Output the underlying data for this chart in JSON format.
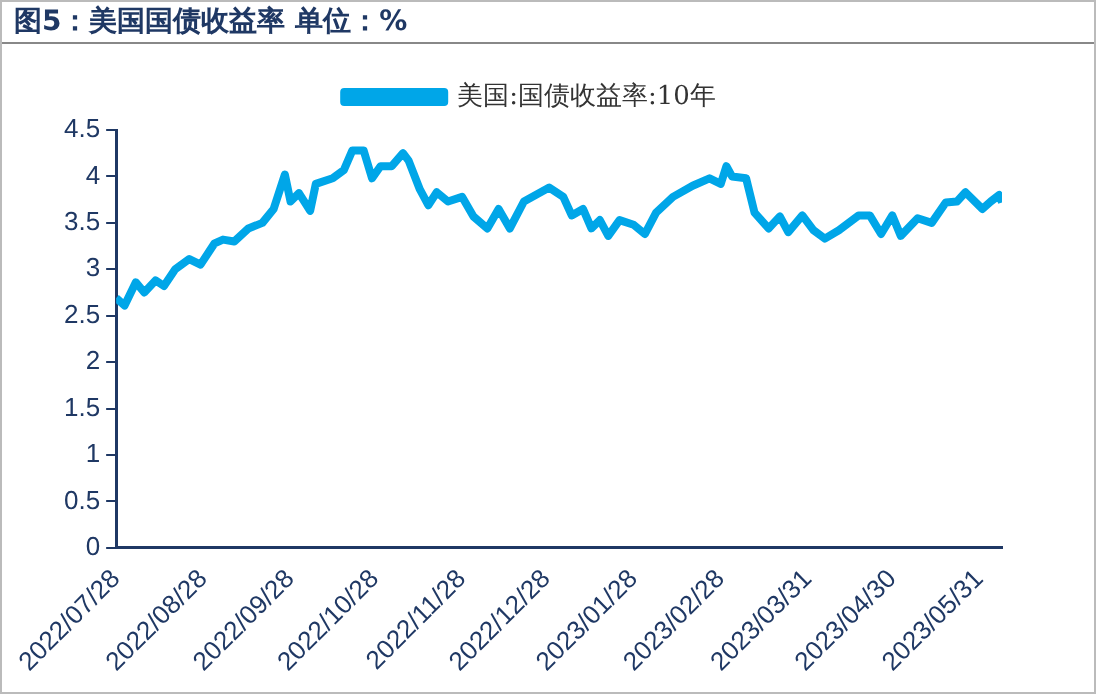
{
  "chart_data": {
    "type": "line",
    "title": "图5：美国国债收益率  单位：%",
    "legend": "top",
    "x": [
      "2022-07-28",
      "2022-07-31",
      "2022-08-04",
      "2022-08-07",
      "2022-08-11",
      "2022-08-14",
      "2022-08-18",
      "2022-08-23",
      "2022-08-27",
      "2022-09-01",
      "2022-09-04",
      "2022-09-08",
      "2022-09-13",
      "2022-09-18",
      "2022-09-22",
      "2022-09-26",
      "2022-09-28",
      "2022-10-01",
      "2022-10-05",
      "2022-10-07",
      "2022-10-13",
      "2022-10-17",
      "2022-10-20",
      "2022-10-24",
      "2022-10-27",
      "2022-10-30",
      "2022-11-03",
      "2022-11-07",
      "2022-11-09",
      "2022-11-13",
      "2022-11-16",
      "2022-11-19",
      "2022-11-23",
      "2022-11-28",
      "2022-12-02",
      "2022-12-07",
      "2022-12-11",
      "2022-12-15",
      "2022-12-20",
      "2022-12-29",
      "2023-01-03",
      "2023-01-06",
      "2023-01-10",
      "2023-01-13",
      "2023-01-16",
      "2023-01-19",
      "2023-01-23",
      "2023-01-28",
      "2023-02-01",
      "2023-02-05",
      "2023-02-11",
      "2023-02-18",
      "2023-02-24",
      "2023-02-28",
      "2023-03-02",
      "2023-03-04",
      "2023-03-09",
      "2023-03-12",
      "2023-03-17",
      "2023-03-21",
      "2023-03-24",
      "2023-03-29",
      "2023-04-02",
      "2023-04-06",
      "2023-04-11",
      "2023-04-18",
      "2023-04-22",
      "2023-04-26",
      "2023-04-30",
      "2023-05-03",
      "2023-05-09",
      "2023-05-14",
      "2023-05-19",
      "2023-05-23",
      "2023-05-26",
      "2023-06-01",
      "2023-06-04",
      "2023-06-07",
      "2023-06-08"
    ],
    "series": [
      {
        "name": "美国:国债收益率:10年",
        "color": "#00a6e8",
        "values": [
          2.69,
          2.61,
          2.86,
          2.75,
          2.88,
          2.82,
          3.0,
          3.11,
          3.05,
          3.28,
          3.32,
          3.3,
          3.44,
          3.5,
          3.65,
          4.02,
          3.73,
          3.82,
          3.63,
          3.92,
          3.98,
          4.07,
          4.28,
          4.28,
          3.98,
          4.11,
          4.11,
          4.25,
          4.17,
          3.86,
          3.69,
          3.83,
          3.73,
          3.78,
          3.57,
          3.44,
          3.65,
          3.44,
          3.73,
          3.88,
          3.78,
          3.58,
          3.65,
          3.44,
          3.53,
          3.36,
          3.53,
          3.48,
          3.38,
          3.61,
          3.78,
          3.9,
          3.98,
          3.92,
          4.11,
          4.0,
          3.98,
          3.61,
          3.44,
          3.57,
          3.4,
          3.58,
          3.42,
          3.33,
          3.42,
          3.58,
          3.58,
          3.38,
          3.58,
          3.36,
          3.55,
          3.5,
          3.72,
          3.73,
          3.83,
          3.65,
          3.73,
          3.8,
          3.72
        ]
      }
    ],
    "xlim": [
      "2022-07-28",
      "2023-06-08"
    ],
    "xticks": [
      {
        "value": "2022-07-28",
        "label": "2022/07/28"
      },
      {
        "value": "2022-08-28",
        "label": "2022/08/28"
      },
      {
        "value": "2022-09-28",
        "label": "2022/09/28"
      },
      {
        "value": "2022-10-28",
        "label": "2022/10/28"
      },
      {
        "value": "2022-11-28",
        "label": "2022/11/28"
      },
      {
        "value": "2022-12-28",
        "label": "2022/12/28"
      },
      {
        "value": "2023-01-28",
        "label": "2023/01/28"
      },
      {
        "value": "2023-02-28",
        "label": "2023/02/28"
      },
      {
        "value": "2023-03-31",
        "label": "2023/03/31"
      },
      {
        "value": "2023-04-30",
        "label": "2023/04/30"
      },
      {
        "value": "2023-05-31",
        "label": "2023/05/31"
      }
    ],
    "ylim": [
      0,
      4.5
    ],
    "yticks": [
      0,
      0.5,
      1,
      1.5,
      2,
      2.5,
      3,
      3.5,
      4,
      4.5
    ],
    "grid": false
  }
}
